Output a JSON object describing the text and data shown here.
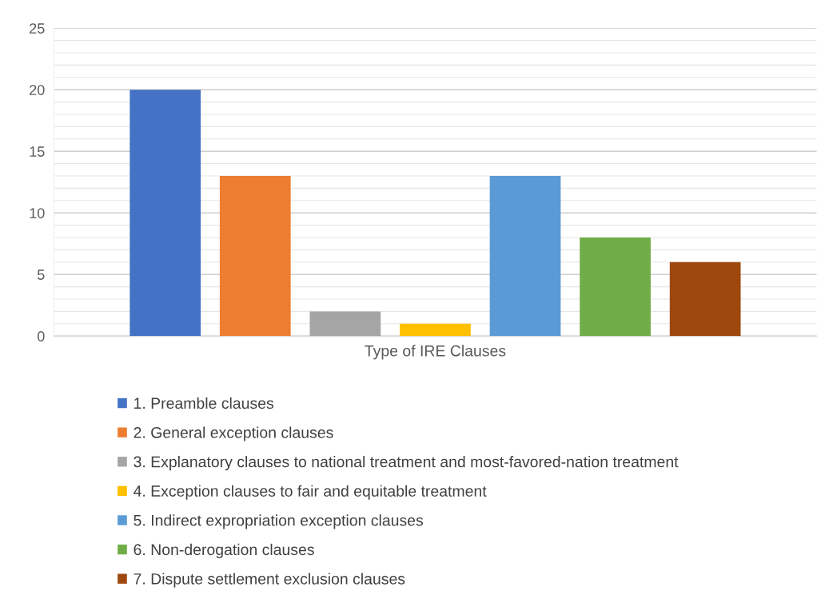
{
  "chart_data": {
    "type": "bar",
    "categories": [
      "Type of IRE Clauses"
    ],
    "series": [
      {
        "name": "1. Preamble clauses",
        "color": "#4472c4",
        "values": [
          20
        ]
      },
      {
        "name": "2. General exception clauses",
        "color": "#ed7d31",
        "values": [
          13
        ]
      },
      {
        "name": "3. Explanatory clauses to national treatment and most-favored-nation treatment",
        "color": "#a5a5a5",
        "values": [
          2
        ]
      },
      {
        "name": "4. Exception clauses to fair and equitable treatment",
        "color": "#ffc000",
        "values": [
          1
        ]
      },
      {
        "name": "5. Indirect expropriation exception clauses",
        "color": "#5b9bd5",
        "values": [
          13
        ]
      },
      {
        "name": "6. Non-derogation clauses",
        "color": "#70ad47",
        "values": [
          8
        ]
      },
      {
        "name": "7. Dispute settlement exclusion clauses",
        "color": "#9e480e",
        "values": [
          6
        ]
      }
    ],
    "ylim": [
      0,
      25
    ],
    "yticks": [
      0,
      {
        "value": 1,
        "label": null
      },
      {
        "value": 2,
        "label": null
      },
      {
        "value": 3,
        "label": null
      },
      {
        "value": 4,
        "label": null
      },
      5,
      {
        "value": 6,
        "label": null
      },
      {
        "value": 7,
        "label": null
      },
      {
        "value": 8,
        "label": null
      },
      {
        "value": 9,
        "label": null
      },
      10,
      {
        "value": 11,
        "label": null
      },
      {
        "value": 12,
        "label": null
      },
      {
        "value": 13,
        "label": null
      },
      {
        "value": 14,
        "label": null
      },
      15,
      {
        "value": 16,
        "label": null
      },
      {
        "value": 17,
        "label": null
      },
      {
        "value": 18,
        "label": null
      },
      {
        "value": 19,
        "label": null
      },
      20,
      {
        "value": 21,
        "label": null
      },
      {
        "value": 22,
        "label": null
      },
      {
        "value": 23,
        "label": null
      },
      {
        "value": 24,
        "label": null
      },
      25
    ],
    "grid": "y",
    "legend": "bottom"
  }
}
